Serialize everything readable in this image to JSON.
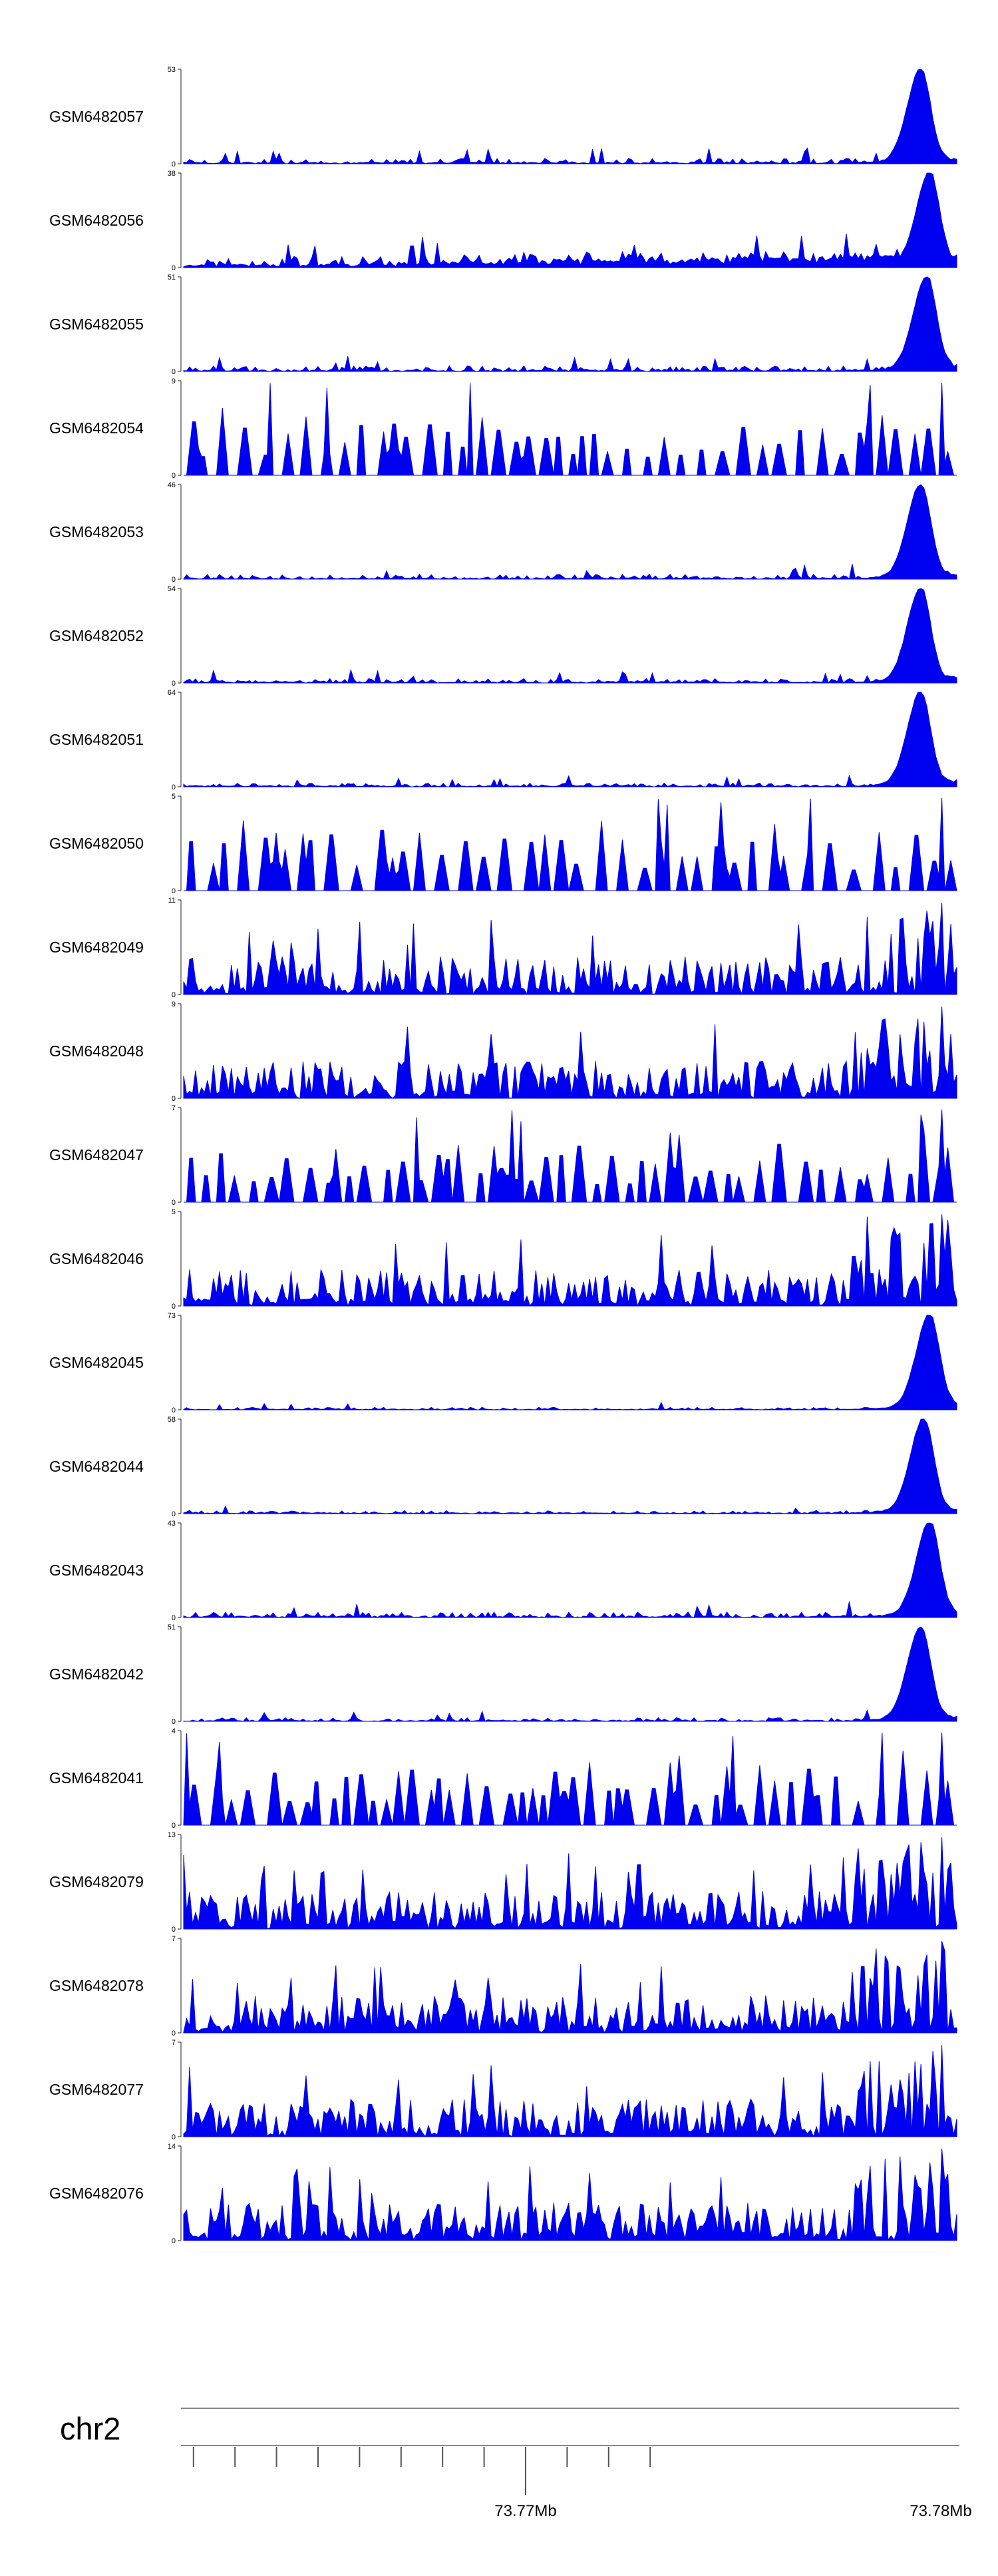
{
  "chart_data": {
    "type": "area",
    "colors": {
      "signal": "#0000f0",
      "axis": "#444444"
    },
    "tracks": [
      {
        "name": "GSM6482057",
        "ymax": 53,
        "ymin": 0,
        "profile": "peak",
        "base": 3
      },
      {
        "name": "GSM6482056",
        "ymax": 38,
        "ymin": 0,
        "profile": "rising",
        "base": 4
      },
      {
        "name": "GSM6482055",
        "ymax": 51,
        "ymin": 0,
        "profile": "peak",
        "base": 3
      },
      {
        "name": "GSM6482054",
        "ymax": 9,
        "ymin": 0,
        "profile": "sparse",
        "base": 3
      },
      {
        "name": "GSM6482053",
        "ymax": 46,
        "ymin": 0,
        "profile": "peak",
        "base": 2.5
      },
      {
        "name": "GSM6482052",
        "ymax": 54,
        "ymin": 0,
        "profile": "peak",
        "base": 2.5
      },
      {
        "name": "GSM6482051",
        "ymax": 64,
        "ymin": 0,
        "profile": "peak",
        "base": 2.5
      },
      {
        "name": "GSM6482050",
        "ymax": 5,
        "ymin": 0,
        "profile": "sparse",
        "base": 2
      },
      {
        "name": "GSM6482049",
        "ymax": 11,
        "ymin": 0,
        "profile": "noisy",
        "base": 3
      },
      {
        "name": "GSM6482048",
        "ymax": 9,
        "ymin": 0,
        "profile": "noisy",
        "base": 2.5
      },
      {
        "name": "GSM6482047",
        "ymax": 7,
        "ymin": 0,
        "profile": "sparse",
        "base": 3
      },
      {
        "name": "GSM6482046",
        "ymax": 5,
        "ymin": 0,
        "profile": "noisy",
        "base": 2
      },
      {
        "name": "GSM6482045",
        "ymax": 73,
        "ymin": 0,
        "profile": "peak",
        "base": 2
      },
      {
        "name": "GSM6482044",
        "ymax": 58,
        "ymin": 0,
        "profile": "peak",
        "base": 2
      },
      {
        "name": "GSM6482043",
        "ymax": 43,
        "ymin": 0,
        "profile": "peak",
        "base": 2.5
      },
      {
        "name": "GSM6482042",
        "ymax": 51,
        "ymin": 0,
        "profile": "peak",
        "base": 2
      },
      {
        "name": "GSM6482041",
        "ymax": 4,
        "ymin": 0,
        "profile": "sparse",
        "base": 2
      },
      {
        "name": "GSM6482079",
        "ymax": 13,
        "ymin": 0,
        "profile": "noisy",
        "base": 3
      },
      {
        "name": "GSM6482078",
        "ymax": 7,
        "ymin": 0,
        "profile": "noisy",
        "base": 2.5
      },
      {
        "name": "GSM6482077",
        "ymax": 7,
        "ymin": 0,
        "profile": "noisy",
        "base": 3
      },
      {
        "name": "GSM6482076",
        "ymax": 14,
        "ymin": 0,
        "profile": "noisy",
        "base": 3.5
      }
    ],
    "genome_axis": {
      "chromosome": "chr2",
      "tick_labels": [
        {
          "label": "73.77Mb",
          "value": 73.77
        },
        {
          "label": "73.78Mb",
          "value": 73.78
        }
      ],
      "minor_tick_step_mb": 0.001
    }
  }
}
